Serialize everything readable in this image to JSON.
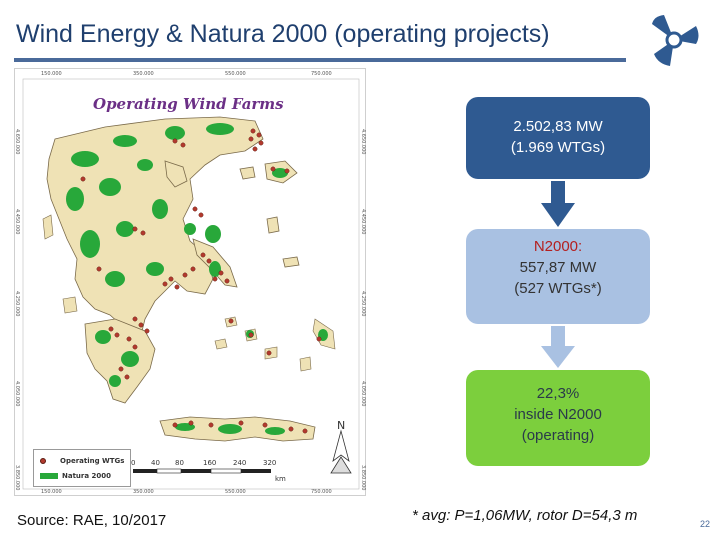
{
  "slide": {
    "title": "Wind Energy & Natura 2000 (operating projects)",
    "logo_icon": "turbine-rotor-logo-icon",
    "page_number": "22"
  },
  "map": {
    "title": "Operating Wind Farms",
    "top_coords": [
      "150.000",
      "350.000",
      "550.000",
      "750.000"
    ],
    "bottom_coords": [
      "150.000",
      "350.000",
      "550.000",
      "750.000"
    ],
    "left_coords": [
      "4.650.000",
      "4.450.000",
      "4.250.000",
      "4.050.000",
      "3.850.000"
    ],
    "right_coords": [
      "4.650.000",
      "4.450.000",
      "4.250.000",
      "4.050.000",
      "3.850.000"
    ],
    "legend": {
      "wtg_label": "Operating WTGs",
      "natura_label": "Natura 2000"
    },
    "scale": {
      "ticks": [
        "0",
        "40",
        "80",
        "160",
        "240",
        "320"
      ],
      "unit": "km"
    },
    "north_label": "N",
    "colors": {
      "land": "#efe2b5",
      "natura": "#28a83a",
      "wtg": "#b23a2e",
      "outline": "#7a6a4a"
    }
  },
  "flow": {
    "total_line1": "2.502,83 MW",
    "total_line2": "(1.969 WTGs)",
    "n2000_heading": "N2000:",
    "n2000_line2": "557,87 MW",
    "n2000_line3": "(527 WTGs*)",
    "share_line1": "22,3%",
    "share_line2": "inside N2000",
    "share_line3": "(operating)",
    "colors": {
      "total_box": "#2f5a91",
      "n2000_box": "#a9c1e2",
      "share_box": "#7ccf3d",
      "arrow_dark": "#2f5a91",
      "arrow_light": "#a9c1e2"
    }
  },
  "footer": {
    "source": "Source: RAE, 10/2017",
    "avg_note": "* avg:  P=1,06MW, rotor D=54,3 m"
  }
}
